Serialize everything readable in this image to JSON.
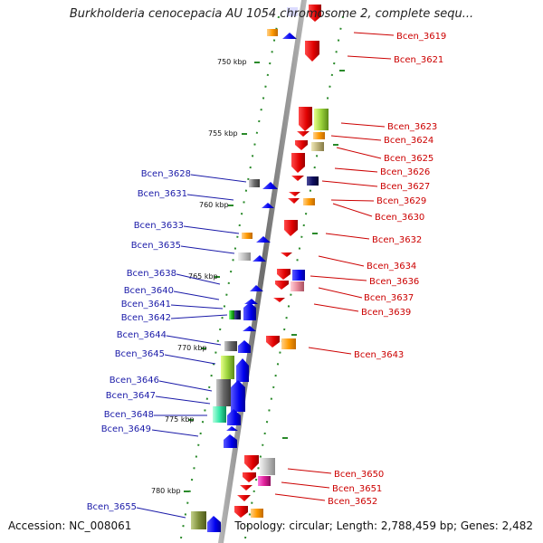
{
  "title": "Burkholderia cenocepacia AU 1054 chromosome 2, complete sequ...",
  "footer": {
    "accession": "Accession: NC_008061",
    "topology": "Topology: circular; Length: 2,788,459 bp; Genes: 2,482"
  },
  "colors": {
    "reverse_strand_label": "#1a1aa8",
    "forward_strand_label": "#cc0000",
    "axis": "#8c8c8c",
    "dots": "#2a8a2a"
  },
  "scale_ticks": [
    "750 kbp",
    "755 kbp",
    "760 kbp",
    "765 kbp",
    "770 kbp",
    "775 kbp",
    "780 kbp"
  ],
  "genes_left": [
    "Bcen_3628",
    "Bcen_3631",
    "Bcen_3633",
    "Bcen_3635",
    "Bcen_3638",
    "Bcen_3640",
    "Bcen_3641",
    "Bcen_3642",
    "Bcen_3644",
    "Bcen_3645",
    "Bcen_3646",
    "Bcen_3647",
    "Bcen_3648",
    "Bcen_3649",
    "Bcen_3655"
  ],
  "genes_right": [
    "Bcen_3619",
    "Bcen_3621",
    "Bcen_3623",
    "Bcen_3624",
    "Bcen_3625",
    "Bcen_3626",
    "Bcen_3627",
    "Bcen_3629",
    "Bcen_3630",
    "Bcen_3632",
    "Bcen_3634",
    "Bcen_3636",
    "Bcen_3637",
    "Bcen_3639",
    "Bcen_3643",
    "Bcen_3650",
    "Bcen_3651",
    "Bcen_3652"
  ]
}
